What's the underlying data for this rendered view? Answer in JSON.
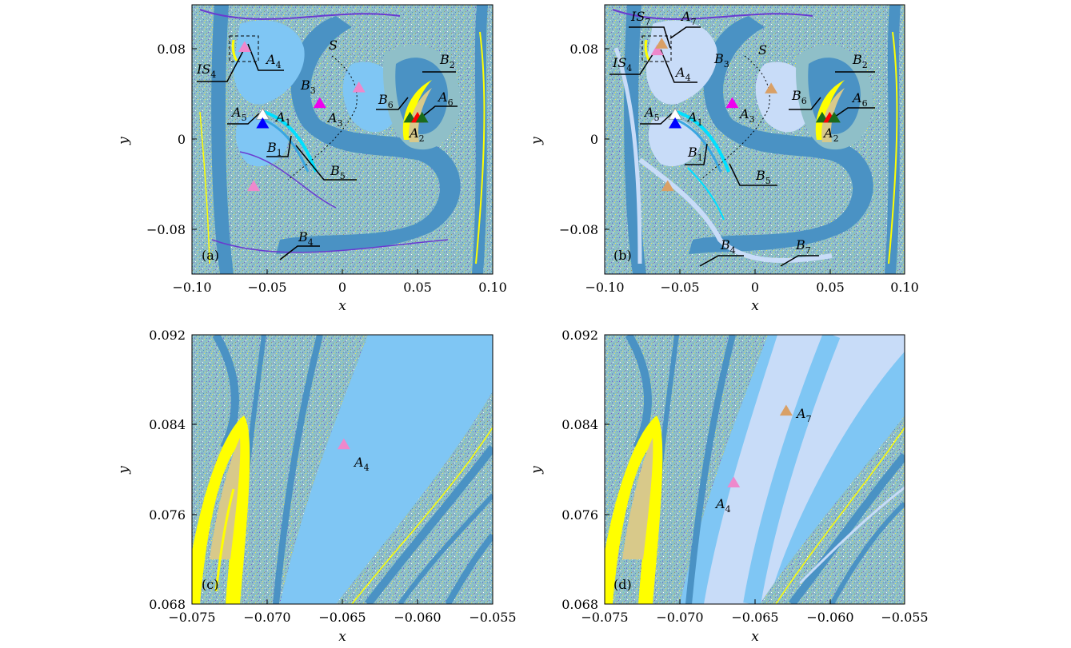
{
  "chart_data": [
    {
      "id": "a",
      "type": "scatter",
      "panel_label": "(a)",
      "xlabel": "x",
      "ylabel": "y",
      "xlim": [
        -0.1,
        0.1
      ],
      "ylim": [
        -0.12,
        0.12
      ],
      "xticks": [
        -0.1,
        -0.05,
        0,
        0.05,
        0.1
      ],
      "xtick_labels": [
        "−0.10",
        "−0.05",
        "0",
        "0.05",
        "0.10"
      ],
      "yticks": [
        0.08,
        0,
        -0.08
      ],
      "ytick_labels": [
        "0.08",
        "0",
        "−0.08"
      ],
      "markers": [
        {
          "x": -0.065,
          "y": 0.082,
          "color": "#ee88cc"
        },
        {
          "x": -0.053,
          "y": 0.022,
          "color": "#ffffff"
        },
        {
          "x": -0.053,
          "y": 0.014,
          "color": "#0000ff"
        },
        {
          "x": -0.015,
          "y": 0.032,
          "color": "#ee00ee"
        },
        {
          "x": 0.011,
          "y": 0.046,
          "color": "#ee88cc"
        },
        {
          "x": -0.059,
          "y": -0.042,
          "color": "#ee88cc"
        },
        {
          "x": 0.045,
          "y": 0.019,
          "color": "#1a6b1a"
        },
        {
          "x": 0.05,
          "y": 0.019,
          "color": "#ff0000"
        },
        {
          "x": 0.053,
          "y": 0.019,
          "color": "#1a6b1a"
        }
      ],
      "annotations": [
        "IS4",
        "A4",
        "S",
        "B2",
        "B3",
        "A5",
        "A1",
        "A3",
        "B6",
        "A6",
        "A2",
        "B1",
        "B5",
        "B4"
      ]
    },
    {
      "id": "b",
      "type": "scatter",
      "panel_label": "(b)",
      "xlabel": "x",
      "ylabel": "y",
      "xlim": [
        -0.1,
        0.1
      ],
      "ylim": [
        -0.12,
        0.12
      ],
      "xticks": [
        -0.1,
        -0.05,
        0,
        0.05,
        0.1
      ],
      "xtick_labels": [
        "−0.10",
        "−0.05",
        "0",
        "0.05",
        "0.10"
      ],
      "yticks": [
        0.08,
        0,
        -0.08
      ],
      "ytick_labels": [
        "0.08",
        "0",
        "−0.08"
      ],
      "markers": [
        {
          "x": -0.065,
          "y": 0.079,
          "color": "#ee88cc"
        },
        {
          "x": -0.062,
          "y": 0.085,
          "color": "#d9a066"
        },
        {
          "x": -0.053,
          "y": 0.022,
          "color": "#ffffff"
        },
        {
          "x": -0.053,
          "y": 0.014,
          "color": "#0000ff"
        },
        {
          "x": -0.015,
          "y": 0.032,
          "color": "#ee00ee"
        },
        {
          "x": 0.011,
          "y": 0.045,
          "color": "#d9a066"
        },
        {
          "x": -0.058,
          "y": -0.042,
          "color": "#d9a066"
        },
        {
          "x": 0.045,
          "y": 0.019,
          "color": "#1a6b1a"
        },
        {
          "x": 0.05,
          "y": 0.019,
          "color": "#ff0000"
        },
        {
          "x": 0.053,
          "y": 0.019,
          "color": "#1a6b1a"
        }
      ],
      "annotations": [
        "IS7",
        "A7",
        "IS4",
        "A4",
        "B3",
        "S",
        "B2",
        "A5",
        "A1",
        "A3",
        "B6",
        "A6",
        "A2",
        "B1",
        "B5",
        "B4",
        "B7"
      ]
    },
    {
      "id": "c",
      "type": "scatter",
      "panel_label": "(c)",
      "xlabel": "x",
      "ylabel": "y",
      "xlim": [
        -0.075,
        -0.055
      ],
      "ylim": [
        0.068,
        0.092
      ],
      "xticks": [
        -0.075,
        -0.07,
        -0.065,
        -0.06,
        -0.055
      ],
      "xtick_labels": [
        "−0.075",
        "−0.070",
        "−0.065",
        "−0.060",
        "−0.055"
      ],
      "yticks": [
        0.092,
        0.084,
        0.076,
        0.068
      ],
      "ytick_labels": [
        "0.092",
        "0.084",
        "0.076",
        "0.068"
      ],
      "markers": [
        {
          "x": -0.0649,
          "y": 0.0822,
          "color": "#ee88cc"
        }
      ],
      "annotations": [
        "A4"
      ]
    },
    {
      "id": "d",
      "type": "scatter",
      "panel_label": "(d)",
      "xlabel": "x",
      "ylabel": "y",
      "xlim": [
        -0.075,
        -0.055
      ],
      "ylim": [
        0.068,
        0.092
      ],
      "xticks": [
        -0.075,
        -0.07,
        -0.065,
        -0.06,
        -0.055
      ],
      "xtick_labels": [
        "−0.075",
        "−0.070",
        "−0.065",
        "−0.060",
        "−0.055"
      ],
      "yticks": [
        0.092,
        0.084,
        0.076,
        0.068
      ],
      "ytick_labels": [
        "0.092",
        "0.084",
        "0.076",
        "0.068"
      ],
      "markers": [
        {
          "x": -0.0664,
          "y": 0.0788,
          "color": "#ee88cc"
        },
        {
          "x": -0.0629,
          "y": 0.0852,
          "color": "#d9a066"
        }
      ],
      "annotations": [
        "A7",
        "A4"
      ]
    }
  ],
  "colors": {
    "light_blue": "#7fc6f4",
    "dark_blue": "#4a92c4",
    "pale_blue": "#c8dcf8",
    "yellow": "#ffff00",
    "tan": "#d8c98a",
    "purple": "#6a3ad0",
    "cyan": "#00e0ff"
  }
}
